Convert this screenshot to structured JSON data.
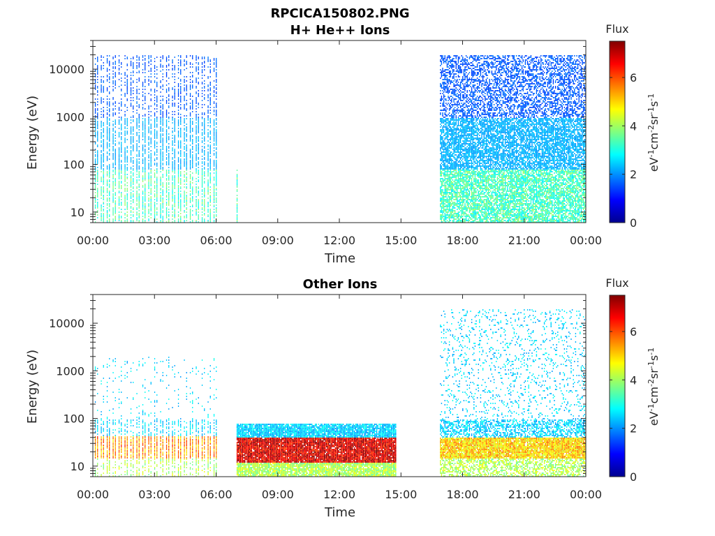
{
  "figure_title": "RPCICA150802.PNG",
  "chart_data": [
    {
      "type": "heatmap",
      "title": "H+ He++ Ions",
      "xlabel": "Time",
      "ylabel": "Energy (eV)",
      "x_ticks": [
        "00:00",
        "03:00",
        "06:00",
        "09:00",
        "12:00",
        "15:00",
        "18:00",
        "21:00",
        "00:00"
      ],
      "x_range_hours": [
        0,
        24
      ],
      "y_scale": "log",
      "y_range": [
        6,
        40000
      ],
      "y_ticks": [
        10,
        100,
        1000,
        10000
      ],
      "colorbar": {
        "label": "Flux",
        "unit_label": "eV-1cm-2sr-1s-1",
        "range": [
          0,
          7.5
        ],
        "ticks": [
          0,
          2,
          4,
          6
        ]
      },
      "data_segments": [
        {
          "start_hour": 0.1,
          "end_hour": 5.9,
          "pattern": "periodic sweeps",
          "energy_range_eV": [
            6,
            20000
          ],
          "peak_flux_range": [
            1.5,
            3.5
          ]
        },
        {
          "start_hour": 7.0,
          "end_hour": 7.05,
          "pattern": "single sweep",
          "energy_range_eV": [
            6,
            80
          ],
          "peak_flux_range": [
            2.5,
            3.5
          ]
        },
        {
          "start_hour": 16.9,
          "end_hour": 24.0,
          "pattern": "continuous",
          "energy_range_eV": [
            6,
            20000
          ],
          "peak_flux_range": [
            1.5,
            3.5
          ]
        }
      ]
    },
    {
      "type": "heatmap",
      "title": "Other Ions",
      "xlabel": "Time",
      "ylabel": "Energy (eV)",
      "x_ticks": [
        "00:00",
        "03:00",
        "06:00",
        "09:00",
        "12:00",
        "15:00",
        "18:00",
        "21:00",
        "00:00"
      ],
      "x_range_hours": [
        0,
        24
      ],
      "y_scale": "log",
      "y_range": [
        6,
        40000
      ],
      "y_ticks": [
        10,
        100,
        1000,
        10000
      ],
      "colorbar": {
        "label": "Flux",
        "unit_label": "eV-1cm-2sr-1s-1",
        "range": [
          0,
          7.5
        ],
        "ticks": [
          0,
          2,
          4,
          6
        ]
      },
      "data_segments": [
        {
          "start_hour": 0.1,
          "end_hour": 5.9,
          "pattern": "periodic sweeps with low-energy band",
          "energy_range_eV": [
            6,
            2000
          ],
          "band_eV": [
            15,
            45
          ],
          "band_flux": 5.5
        },
        {
          "start_hour": 7.0,
          "end_hour": 14.75,
          "pattern": "continuous intense band",
          "energy_range_eV": [
            6,
            80
          ],
          "band_eV": [
            12,
            40
          ],
          "band_flux": 6.8
        },
        {
          "start_hour": 16.9,
          "end_hour": 24.0,
          "pattern": "continuous with low-energy band",
          "energy_range_eV": [
            6,
            20000
          ],
          "band_eV": [
            15,
            40
          ],
          "band_flux": 5.0
        }
      ]
    }
  ]
}
